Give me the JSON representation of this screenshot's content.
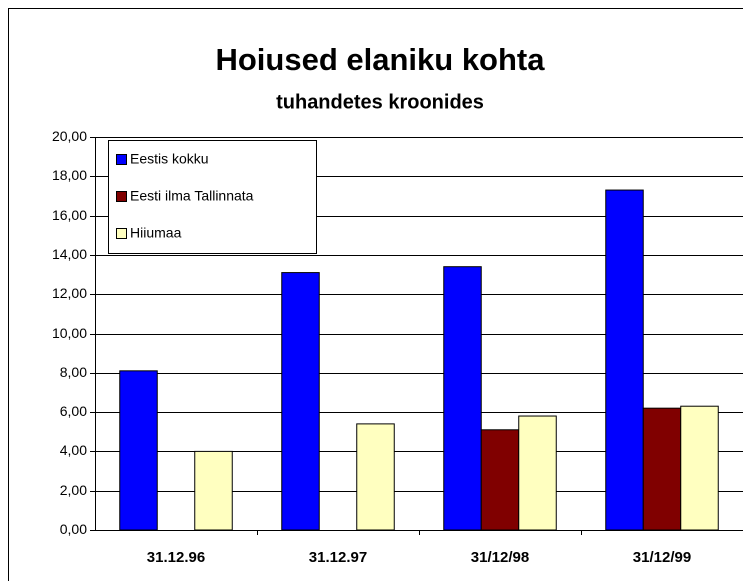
{
  "chart_data": {
    "type": "bar",
    "title": "Hoiused elaniku kohta",
    "subtitle": "tuhandetes kroonides",
    "categories": [
      "31.12.96",
      "31.12.97",
      "31/12/98",
      "31/12/99"
    ],
    "series": [
      {
        "name": "Eestis kokku",
        "color": "#0000ff",
        "values": [
          8.1,
          13.1,
          13.4,
          17.3
        ]
      },
      {
        "name": "Eesti ilma Tallinnata",
        "color": "#800000",
        "values": [
          null,
          null,
          5.1,
          6.2
        ]
      },
      {
        "name": "Hiiumaa",
        "color": "#ffffc0",
        "values": [
          4.0,
          5.4,
          5.8,
          6.3
        ]
      }
    ],
    "ylim": [
      0,
      20
    ],
    "yticks": [
      {
        "value": 0,
        "label": "0,00"
      },
      {
        "value": 2,
        "label": "2,00"
      },
      {
        "value": 4,
        "label": "4,00"
      },
      {
        "value": 6,
        "label": "6,00"
      },
      {
        "value": 8,
        "label": "8,00"
      },
      {
        "value": 10,
        "label": "10,00"
      },
      {
        "value": 12,
        "label": "12,00"
      },
      {
        "value": 14,
        "label": "14,00"
      },
      {
        "value": 16,
        "label": "16,00"
      },
      {
        "value": 18,
        "label": "18,00"
      },
      {
        "value": 20,
        "label": "20,00"
      }
    ],
    "grid": true,
    "legend": "top-left"
  }
}
